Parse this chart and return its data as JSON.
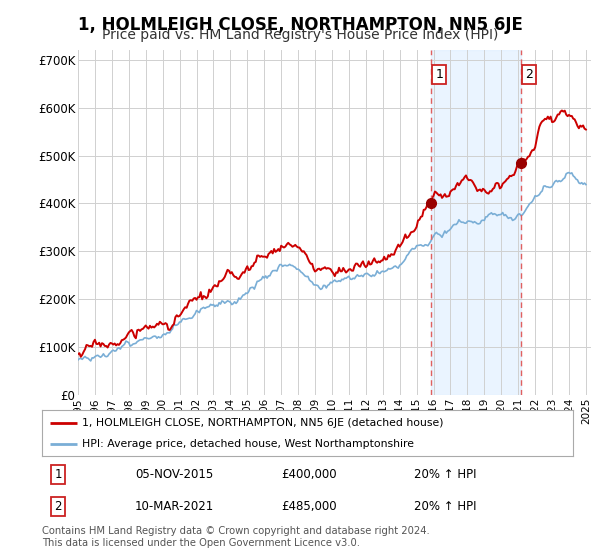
{
  "title": "1, HOLMLEIGH CLOSE, NORTHAMPTON, NN5 6JE",
  "subtitle": "Price paid vs. HM Land Registry's House Price Index (HPI)",
  "title_fontsize": 12,
  "subtitle_fontsize": 10,
  "ylabel_ticks": [
    "£0",
    "£100K",
    "£200K",
    "£300K",
    "£400K",
    "£500K",
    "£600K",
    "£700K"
  ],
  "ytick_values": [
    0,
    100000,
    200000,
    300000,
    400000,
    500000,
    600000,
    700000
  ],
  "ylim": [
    0,
    720000
  ],
  "xlim_start": 1995.0,
  "xlim_end": 2025.3,
  "purchase1_date": 2015.85,
  "purchase1_price": 400000,
  "purchase1_label": "1",
  "purchase2_date": 2021.18,
  "purchase2_price": 485000,
  "purchase2_label": "2",
  "red_line_color": "#cc0000",
  "blue_line_color": "#7aaed6",
  "vline_color": "#e06060",
  "background_color": "#ffffff",
  "grid_color": "#d0d0d0",
  "legend_label1": "1, HOLMLEIGH CLOSE, NORTHAMPTON, NN5 6JE (detached house)",
  "legend_label2": "HPI: Average price, detached house, West Northamptonshire",
  "annotation1_date": "05-NOV-2015",
  "annotation1_price": "£400,000",
  "annotation1_hpi": "20% ↑ HPI",
  "annotation2_date": "10-MAR-2021",
  "annotation2_price": "£485,000",
  "annotation2_hpi": "20% ↑ HPI",
  "footer": "Contains HM Land Registry data © Crown copyright and database right 2024.\nThis data is licensed under the Open Government Licence v3.0.",
  "xtick_years": [
    1995,
    1996,
    1997,
    1998,
    1999,
    2000,
    2001,
    2002,
    2003,
    2004,
    2005,
    2006,
    2007,
    2008,
    2009,
    2010,
    2011,
    2012,
    2013,
    2014,
    2015,
    2016,
    2017,
    2018,
    2019,
    2020,
    2021,
    2022,
    2023,
    2024,
    2025
  ]
}
